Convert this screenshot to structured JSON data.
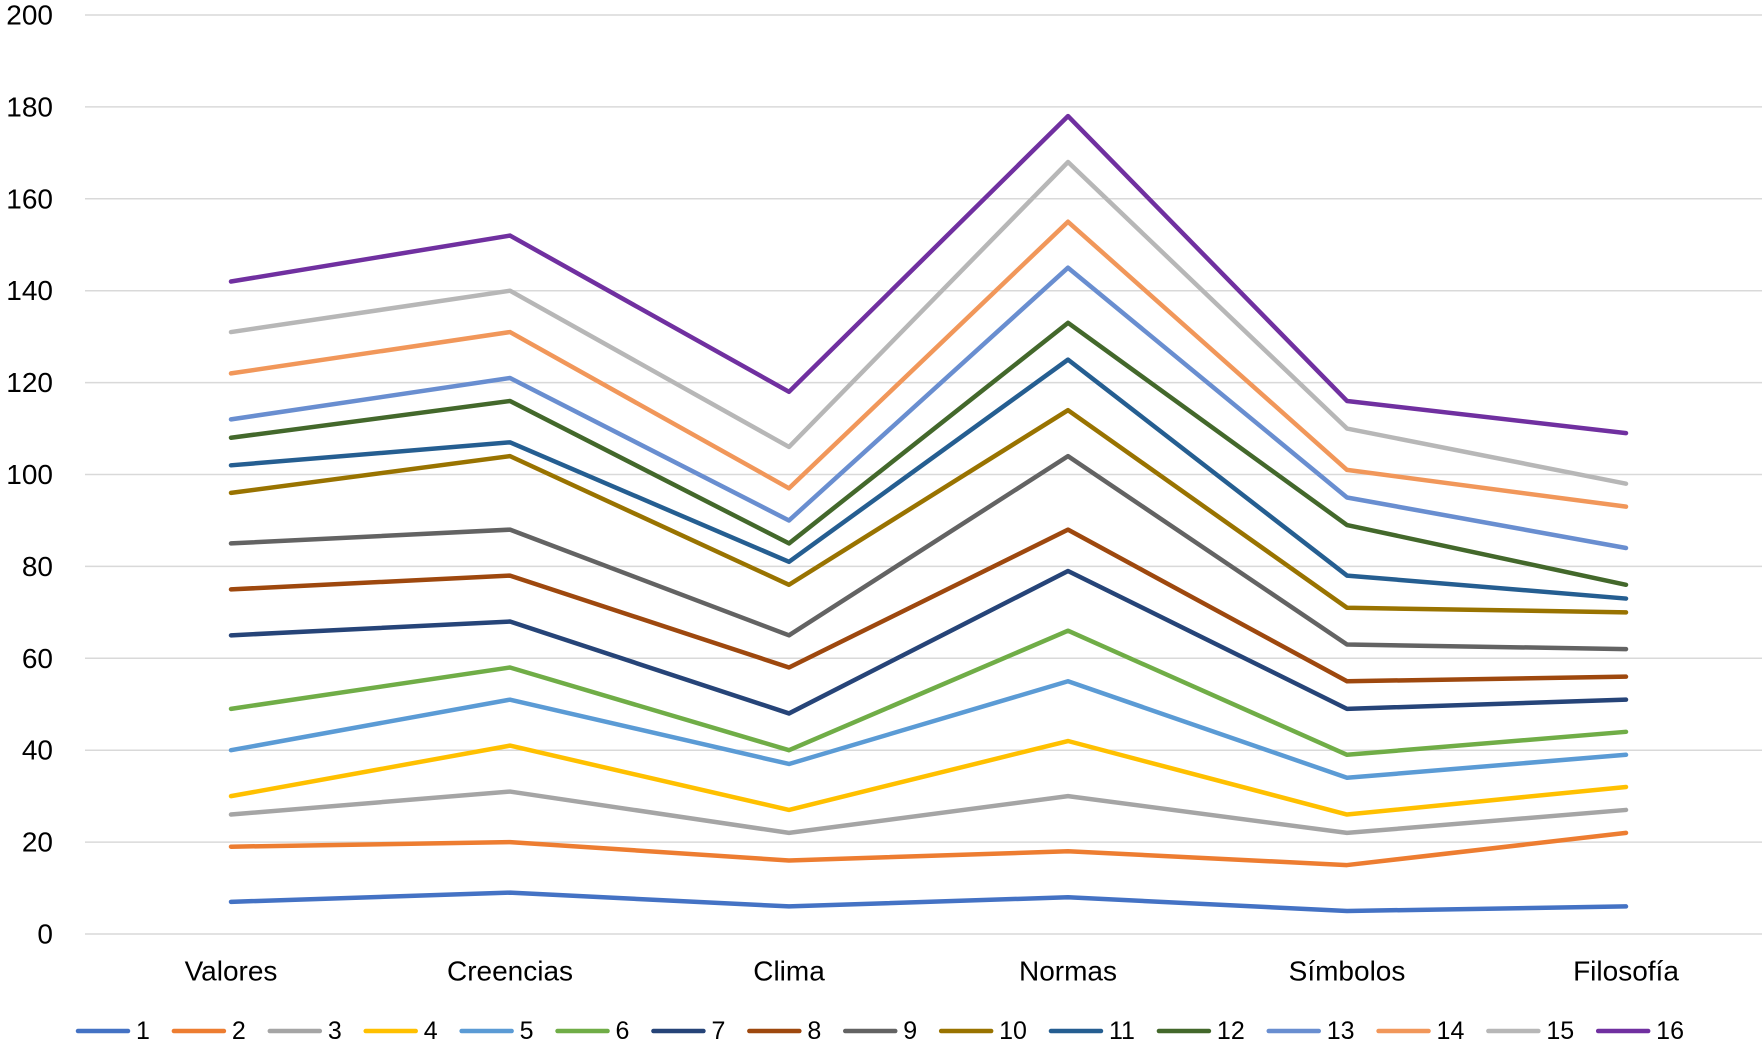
{
  "chart_data": {
    "type": "line",
    "title": "",
    "xlabel": "",
    "ylabel": "",
    "categories": [
      "Valores",
      "Creencias",
      "Clima",
      "Normas",
      "Símbolos",
      "Filosofía"
    ],
    "ylim": [
      0,
      200
    ],
    "yticks": [
      0,
      20,
      40,
      60,
      80,
      100,
      120,
      140,
      160,
      180,
      200
    ],
    "grid": true,
    "legend_position": "bottom",
    "series": [
      {
        "name": "1",
        "color": "#4472C4",
        "values": [
          7,
          9,
          6,
          8,
          5,
          6
        ]
      },
      {
        "name": "2",
        "color": "#ED7D31",
        "values": [
          19,
          20,
          16,
          18,
          15,
          22
        ]
      },
      {
        "name": "3",
        "color": "#A5A5A5",
        "values": [
          26,
          31,
          22,
          30,
          22,
          27
        ]
      },
      {
        "name": "4",
        "color": "#FFC000",
        "values": [
          30,
          41,
          27,
          42,
          26,
          32
        ]
      },
      {
        "name": "5",
        "color": "#5B9BD5",
        "values": [
          40,
          51,
          37,
          55,
          34,
          39
        ]
      },
      {
        "name": "6",
        "color": "#70AD47",
        "values": [
          49,
          58,
          40,
          66,
          39,
          44
        ]
      },
      {
        "name": "7",
        "color": "#264478",
        "values": [
          65,
          68,
          48,
          79,
          49,
          51
        ]
      },
      {
        "name": "8",
        "color": "#9E480E",
        "values": [
          75,
          78,
          58,
          88,
          55,
          56
        ]
      },
      {
        "name": "9",
        "color": "#636363",
        "values": [
          85,
          88,
          65,
          104,
          63,
          62
        ]
      },
      {
        "name": "10",
        "color": "#997300",
        "values": [
          96,
          104,
          76,
          114,
          71,
          70
        ]
      },
      {
        "name": "11",
        "color": "#255E91",
        "values": [
          102,
          107,
          81,
          125,
          78,
          73
        ]
      },
      {
        "name": "12",
        "color": "#43682B",
        "values": [
          108,
          116,
          85,
          133,
          89,
          76
        ]
      },
      {
        "name": "13",
        "color": "#698ED0",
        "values": [
          112,
          121,
          90,
          145,
          95,
          84
        ]
      },
      {
        "name": "14",
        "color": "#F1975A",
        "values": [
          122,
          131,
          97,
          155,
          101,
          93
        ]
      },
      {
        "name": "15",
        "color": "#B7B7B7",
        "values": [
          131,
          140,
          106,
          168,
          110,
          98
        ]
      },
      {
        "name": "16",
        "color": "#7030A0",
        "values": [
          142,
          152,
          118,
          178,
          116,
          109
        ]
      }
    ]
  }
}
